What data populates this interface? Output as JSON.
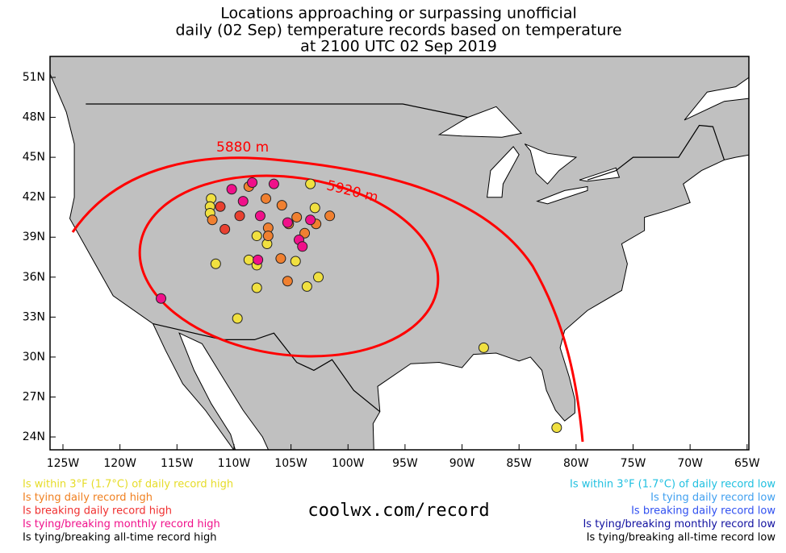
{
  "title": [
    "Locations approaching or surpassing unofficial",
    "daily (02 Sep) temperature records based on temperature",
    "at 2100 UTC 02 Sep 2019"
  ],
  "lon_ticks": [
    {
      "value": -125,
      "label": "125W"
    },
    {
      "value": -120,
      "label": "120W"
    },
    {
      "value": -115,
      "label": "115W"
    },
    {
      "value": -110,
      "label": "110W"
    },
    {
      "value": -105,
      "label": "105W"
    },
    {
      "value": -100,
      "label": "100W"
    },
    {
      "value": -95,
      "label": "95W"
    },
    {
      "value": -90,
      "label": "90W"
    },
    {
      "value": -85,
      "label": "85W"
    },
    {
      "value": -80,
      "label": "80W"
    },
    {
      "value": -75,
      "label": "75W"
    },
    {
      "value": -70,
      "label": "70W"
    },
    {
      "value": -65,
      "label": "65W"
    }
  ],
  "lat_ticks": [
    {
      "value": 24,
      "label": "24N"
    },
    {
      "value": 27,
      "label": "27N"
    },
    {
      "value": 30,
      "label": "30N"
    },
    {
      "value": 33,
      "label": "33N"
    },
    {
      "value": 36,
      "label": "36N"
    },
    {
      "value": 39,
      "label": "39N"
    },
    {
      "value": 42,
      "label": "42N"
    },
    {
      "value": 45,
      "label": "45N"
    },
    {
      "value": 48,
      "label": "48N"
    },
    {
      "value": 51,
      "label": "51N"
    }
  ],
  "contours": [
    {
      "label": "5880 m"
    },
    {
      "label": "5920 m"
    }
  ],
  "site": "coolwx.com/record",
  "legend": {
    "left": [
      {
        "label": "Is within 3°F (1.7°C) of daily record high",
        "color": "#e6dc28",
        "fill": "#f0e040",
        "points": [
          {
            "lon": -112.0,
            "lat": 41.9
          },
          {
            "lon": -112.1,
            "lat": 41.3
          },
          {
            "lon": -112.1,
            "lat": 40.8
          },
          {
            "lon": -111.6,
            "lat": 37.0
          },
          {
            "lon": -109.7,
            "lat": 32.9
          },
          {
            "lon": -108.0,
            "lat": 39.1
          },
          {
            "lon": -107.1,
            "lat": 38.5
          },
          {
            "lon": -108.0,
            "lat": 36.9
          },
          {
            "lon": -108.7,
            "lat": 37.3
          },
          {
            "lon": -108.0,
            "lat": 35.2
          },
          {
            "lon": -103.3,
            "lat": 43.0
          },
          {
            "lon": -104.6,
            "lat": 37.2
          },
          {
            "lon": -103.6,
            "lat": 35.3
          },
          {
            "lon": -102.6,
            "lat": 36.0
          },
          {
            "lon": -102.9,
            "lat": 41.2
          },
          {
            "lon": -88.1,
            "lat": 30.7
          },
          {
            "lon": -81.7,
            "lat": 24.7
          }
        ]
      },
      {
        "label": "Is tying daily record high",
        "color": "#f08020",
        "fill": "#f08030",
        "points": [
          {
            "lon": -111.9,
            "lat": 40.3
          },
          {
            "lon": -108.7,
            "lat": 42.8
          },
          {
            "lon": -107.2,
            "lat": 41.9
          },
          {
            "lon": -105.8,
            "lat": 41.4
          },
          {
            "lon": -107.0,
            "lat": 39.7
          },
          {
            "lon": -107.0,
            "lat": 39.1
          },
          {
            "lon": -105.9,
            "lat": 37.4
          },
          {
            "lon": -105.3,
            "lat": 35.7
          },
          {
            "lon": -103.8,
            "lat": 39.3
          },
          {
            "lon": -102.8,
            "lat": 40.0
          },
          {
            "lon": -101.6,
            "lat": 40.6
          },
          {
            "lon": -104.5,
            "lat": 40.5
          },
          {
            "lon": -105.2,
            "lat": 40.0
          }
        ]
      },
      {
        "label": "Is breaking daily record high",
        "color": "#f03030",
        "fill": "#e84030",
        "points": [
          {
            "lon": -111.2,
            "lat": 41.3
          },
          {
            "lon": -109.5,
            "lat": 40.6
          },
          {
            "lon": -110.8,
            "lat": 39.6
          }
        ]
      },
      {
        "label": "Is tying/breaking monthly record high",
        "color": "#f0108a",
        "fill": "#f0108a",
        "points": [
          {
            "lon": -116.4,
            "lat": 34.4
          },
          {
            "lon": -110.2,
            "lat": 42.6
          },
          {
            "lon": -109.2,
            "lat": 41.7
          },
          {
            "lon": -108.4,
            "lat": 43.1
          },
          {
            "lon": -106.5,
            "lat": 43.0
          },
          {
            "lon": -107.7,
            "lat": 40.6
          },
          {
            "lon": -105.3,
            "lat": 40.1
          },
          {
            "lon": -103.3,
            "lat": 40.3
          },
          {
            "lon": -104.3,
            "lat": 38.8
          },
          {
            "lon": -104.0,
            "lat": 38.3
          },
          {
            "lon": -107.9,
            "lat": 37.3
          }
        ]
      },
      {
        "label": "Is tying/breaking all-time record high",
        "color": "#000000"
      }
    ],
    "right": [
      {
        "label": "Is within 3°F (1.7°C) of daily record low",
        "color": "#20c0e0"
      },
      {
        "label": "Is tying daily record low",
        "color": "#40a0f0"
      },
      {
        "label": "Is breaking daily record low",
        "color": "#3050f0"
      },
      {
        "label": "Is tying/breaking monthly record low",
        "color": "#1010a0"
      },
      {
        "label": "Is tying/breaking all-time record low",
        "color": "#000000"
      }
    ]
  }
}
